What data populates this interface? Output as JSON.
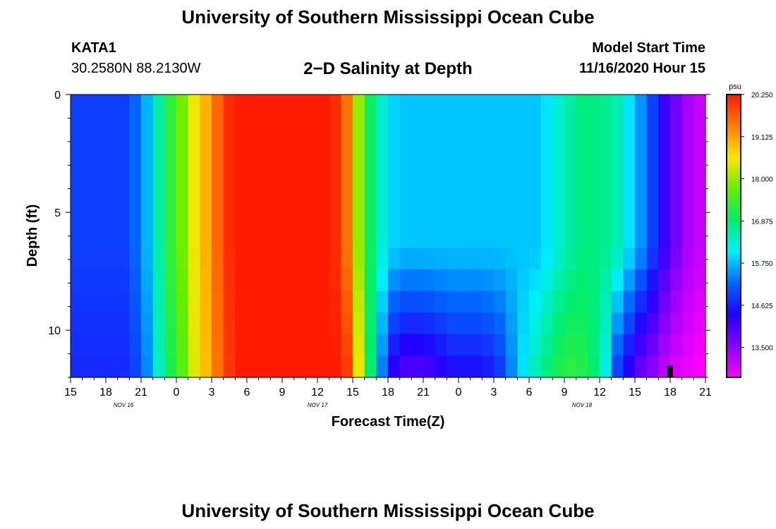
{
  "header": {
    "title": "University of Southern Mississippi Ocean Cube",
    "station": "KATA1",
    "coords": "30.2580N 88.2130W",
    "subtitle": "2−D Salinity at Depth",
    "model_start_label": "Model Start Time",
    "model_start_value": "11/16/2020 Hour 15"
  },
  "footer": {
    "title": "University of Southern Mississippi Ocean Cube"
  },
  "chart_data": {
    "type": "heatmap",
    "title": "2−D Salinity at Depth",
    "xlabel": "Forecast Time(Z)",
    "ylabel": "Depth (ft)",
    "x_range_hours": [
      0,
      54
    ],
    "x_tick_labels": [
      "15",
      "18",
      "21",
      "0",
      "3",
      "6",
      "9",
      "12",
      "15",
      "18",
      "21",
      "0",
      "3",
      "6",
      "9",
      "12",
      "15",
      "18",
      "21"
    ],
    "date_labels": [
      {
        "text": "NOV 16",
        "hour": 4.5
      },
      {
        "text": "NOV 17",
        "hour": 21
      },
      {
        "text": "NOV 18",
        "hour": 43.5
      }
    ],
    "ylim": [
      0,
      12
    ],
    "y_ticks": [
      0,
      5,
      10
    ],
    "depth_levels_ft": [
      0,
      1,
      2,
      3,
      4,
      5,
      6,
      7,
      8,
      9,
      10,
      11,
      12
    ],
    "colorbar": {
      "unit": "psu",
      "min": 12.7,
      "max": 20.25,
      "tick_values": [
        20.25,
        19.125,
        18.0,
        16.875,
        15.75,
        14.625,
        13.5
      ],
      "tick_labels": [
        "20.250",
        "19.125",
        "18.000",
        "16.875",
        "15.750",
        "14.625",
        "13.500"
      ],
      "colors_top_to_bottom": [
        "#ff1a00",
        "#ff7f00",
        "#ffe600",
        "#66ee00",
        "#00ee70",
        "#00eeff",
        "#0066ff",
        "#2200ff",
        "#8800ff",
        "#ff00ff"
      ]
    },
    "surface_salinity_hourly": [
      14.9,
      14.9,
      14.9,
      14.9,
      14.9,
      15.2,
      15.7,
      16.6,
      17.3,
      17.8,
      18.5,
      19.0,
      19.6,
      20.1,
      20.25,
      20.25,
      20.25,
      20.25,
      20.25,
      20.25,
      20.25,
      20.25,
      20.1,
      19.5,
      18.0,
      17.0,
      16.3,
      15.9,
      15.8,
      15.8,
      15.8,
      15.8,
      15.8,
      15.8,
      15.8,
      15.8,
      15.8,
      15.8,
      15.8,
      15.8,
      16.0,
      16.3,
      16.6,
      16.8,
      16.8,
      16.7,
      16.5,
      16.0,
      15.5,
      14.9,
      14.2,
      13.7,
      13.3,
      13.1,
      13.1
    ],
    "bottom_salinity_hourly": [
      14.7,
      14.7,
      14.7,
      14.7,
      14.7,
      14.9,
      15.4,
      16.4,
      17.1,
      17.6,
      18.4,
      18.9,
      19.5,
      20.0,
      20.25,
      20.25,
      20.25,
      20.25,
      20.25,
      20.25,
      20.25,
      20.25,
      20.25,
      20.0,
      18.5,
      16.9,
      15.3,
      14.2,
      13.9,
      13.9,
      14.0,
      14.2,
      14.4,
      14.4,
      14.4,
      14.5,
      14.8,
      15.4,
      16.0,
      16.5,
      16.9,
      17.2,
      17.3,
      17.2,
      16.9,
      16.2,
      14.8,
      14.2,
      13.7,
      13.4,
      13.1,
      12.9,
      12.8,
      12.7,
      12.7
    ],
    "stratification_onset_depth_ft": 6.5,
    "marker": {
      "hour": 51,
      "depth_ft": 11.5
    }
  }
}
